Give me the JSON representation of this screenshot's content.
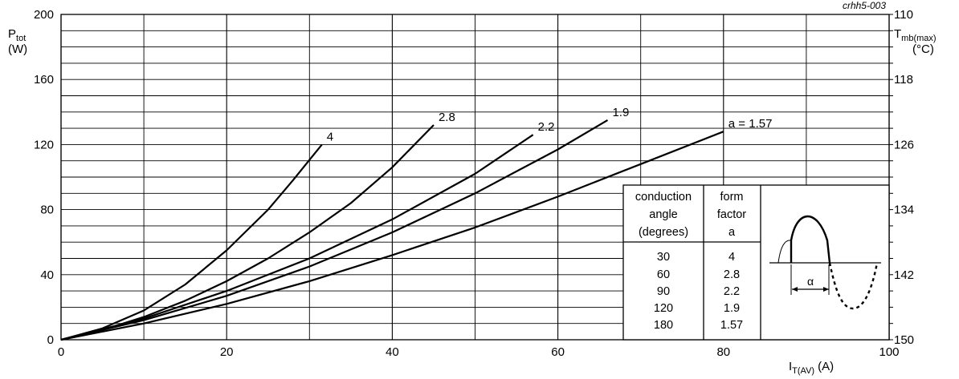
{
  "chart_data": {
    "type": "line",
    "figure_code": "crhh5-003",
    "xlabel": "I",
    "xlabel_sub": "T(AV)",
    "xlabel_unit": "(A)",
    "ylabel": "P",
    "ylabel_sub": "tot",
    "ylabel_unit": "(W)",
    "y2label": "T",
    "y2label_sub": "mb(max)",
    "y2label_unit": "(°C)",
    "xlim": [
      0,
      100
    ],
    "ylim": [
      0,
      200
    ],
    "y2lim": [
      150,
      110
    ],
    "x_ticks": [
      "0",
      "20",
      "40",
      "60",
      "80",
      "100"
    ],
    "y_ticks": [
      "0",
      "40",
      "80",
      "120",
      "160",
      "200"
    ],
    "y2_ticks": [
      "150",
      "142",
      "134",
      "126",
      "118",
      "110"
    ],
    "grid": true,
    "series": [
      {
        "name": "4",
        "label": "4",
        "x": [
          0,
          5,
          10,
          15,
          20,
          25,
          28,
          31.5
        ],
        "y": [
          0,
          7,
          18,
          34,
          55,
          80,
          98,
          120
        ]
      },
      {
        "name": "2.8",
        "label": "2.8",
        "x": [
          0,
          5,
          10,
          15,
          20,
          25,
          30,
          35,
          40,
          45
        ],
        "y": [
          0,
          6,
          14,
          24,
          36,
          50,
          66,
          84,
          106,
          132
        ]
      },
      {
        "name": "2.2",
        "label": "2.2",
        "x": [
          0,
          10,
          20,
          30,
          40,
          50,
          57
        ],
        "y": [
          0,
          13,
          30,
          50,
          74,
          102,
          126
        ]
      },
      {
        "name": "1.9",
        "label": "1.9",
        "x": [
          0,
          10,
          20,
          30,
          40,
          50,
          60,
          66
        ],
        "y": [
          0,
          12,
          27,
          45,
          66,
          90,
          117,
          135
        ]
      },
      {
        "name": "1.57",
        "label": "a = 1.57",
        "x": [
          0,
          10,
          20,
          30,
          40,
          50,
          60,
          70,
          80
        ],
        "y": [
          0,
          10,
          22,
          36,
          52,
          69,
          88,
          108,
          128
        ]
      }
    ]
  },
  "inset_table": {
    "header_angle": [
      "conduction",
      "angle",
      "(degrees)"
    ],
    "header_factor": [
      "form",
      "factor",
      "a"
    ],
    "angles": [
      "30",
      "60",
      "90",
      "120",
      "180"
    ],
    "factors": [
      "4",
      "2.8",
      "2.2",
      "1.9",
      "1.57"
    ],
    "waveform_label": "α"
  }
}
